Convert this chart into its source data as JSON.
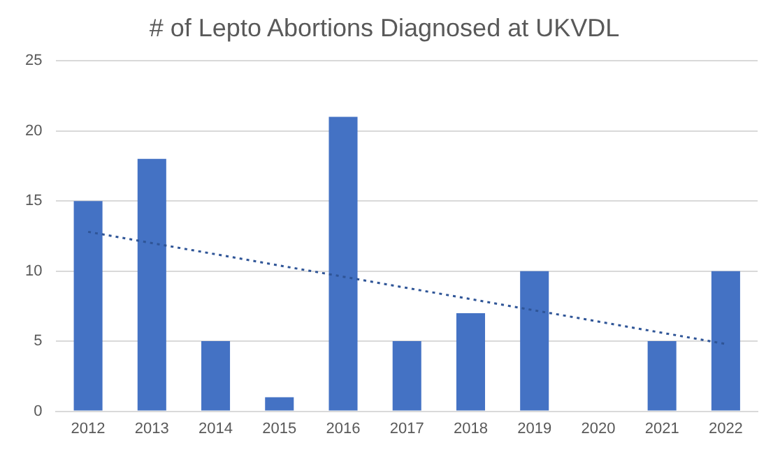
{
  "chart_data": {
    "type": "bar",
    "title": "# of Lepto Abortions Diagnosed at UKVDL",
    "categories": [
      "2012",
      "2013",
      "2014",
      "2015",
      "2016",
      "2017",
      "2018",
      "2019",
      "2020",
      "2021",
      "2022"
    ],
    "series": [
      {
        "color": "#4472c4",
        "values": [
          15,
          18,
          5,
          1,
          21,
          5,
          7,
          10,
          0,
          5,
          10
        ]
      },
      {
        "type": "line",
        "color": "#2f5597",
        "line_style": "dotted",
        "marker": "none",
        "values": [
          12.8,
          12.0,
          11.2,
          10.4,
          9.6,
          8.8,
          8.0,
          7.2,
          6.4,
          5.6,
          4.8
        ]
      }
    ],
    "ylim": [
      0,
      25
    ],
    "yticks": [
      0,
      5,
      10,
      15,
      20,
      25
    ],
    "grid": "y",
    "legend": false
  }
}
